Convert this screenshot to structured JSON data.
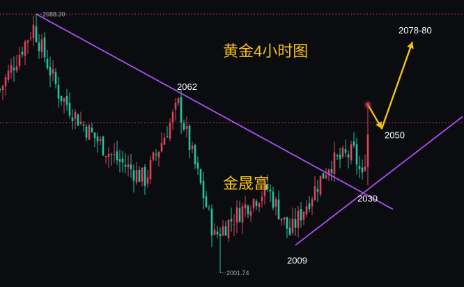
{
  "chart_data": {
    "type": "candlestick",
    "title": "黄金4小时图",
    "watermark": "金晟富",
    "colors": {
      "background": "#0b0c10",
      "up": "#e0435a",
      "down": "#20c5a3",
      "trendline": "#b04ff0",
      "dotted_level": "#d83c4c",
      "annotation": "#f5c314",
      "label_text": "#ffffff",
      "small_label": "#aaaaaa"
    },
    "y_range": [
      1997,
      2093
    ],
    "horizontal_levels": [
      {
        "label": "2088.30",
        "value": 2088.3,
        "style": "dotted"
      },
      {
        "label": "",
        "value": 2052,
        "style": "dotted"
      }
    ],
    "price_labels": [
      {
        "name": "high-label",
        "text": "2062",
        "value": 2062
      },
      {
        "name": "target-label",
        "text": "2050",
        "value": 2050
      },
      {
        "name": "support-label",
        "text": "2030",
        "value": 2030
      },
      {
        "name": "low-label",
        "text": "2009",
        "value": 2009
      },
      {
        "name": "projection-label",
        "text": "2078-80",
        "value": 2079
      }
    ],
    "extreme_labels": [
      {
        "name": "top-extreme-label",
        "text": "2088.30",
        "value": 2088.3
      },
      {
        "name": "bottom-extreme-label",
        "text": "2001.74",
        "value": 2001.74
      }
    ],
    "candle_count": 133,
    "candles_generated": true,
    "series_anchors": [
      {
        "bar": 0,
        "close": 2063
      },
      {
        "bar": 12,
        "close": 2084
      },
      {
        "bar": 21,
        "close": 2062
      },
      {
        "bar": 29,
        "close": 2052
      },
      {
        "bar": 40,
        "close": 2041
      },
      {
        "bar": 52,
        "close": 2033
      },
      {
        "bar": 64,
        "close": 2058
      },
      {
        "bar": 77,
        "close": 2014
      },
      {
        "bar": 88,
        "close": 2024
      },
      {
        "bar": 96,
        "close": 2030
      },
      {
        "bar": 104,
        "close": 2015
      },
      {
        "bar": 118,
        "close": 2038
      },
      {
        "bar": 127,
        "close": 2042
      },
      {
        "bar": 130,
        "close": 2033
      },
      {
        "bar": 132,
        "close": 2048
      }
    ],
    "trendlines": [
      {
        "name": "descending-resistance",
        "from": {
          "bar": 13,
          "value": 2088.3
        },
        "to": {
          "bar": 141,
          "value": 2023
        }
      },
      {
        "name": "ascending-support",
        "from": {
          "bar": 106,
          "value": 2011
        },
        "to": {
          "bar": 166,
          "value": 2054
        }
      }
    ],
    "projection": {
      "path": [
        {
          "bar": 132,
          "value": 2058
        },
        {
          "bar": 137,
          "value": 2050
        },
        {
          "bar": 148,
          "value": 2079
        }
      ]
    }
  }
}
